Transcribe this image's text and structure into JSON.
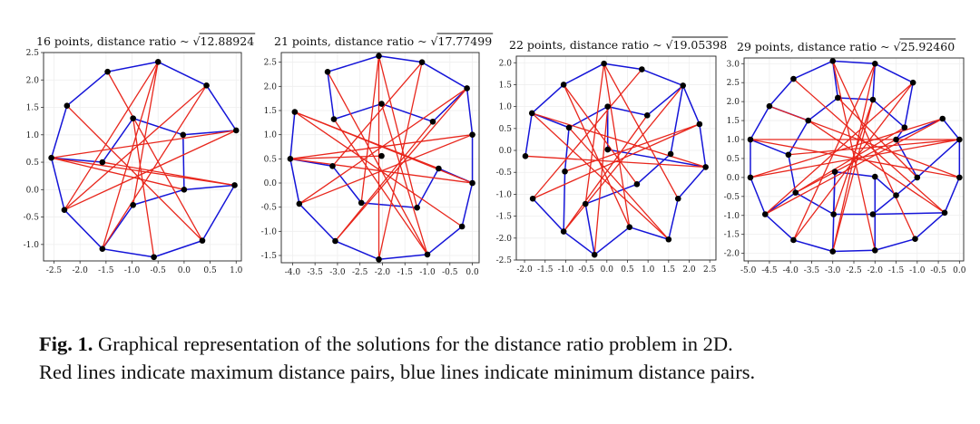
{
  "caption": {
    "label": "Fig. 1.",
    "line1": "Graphical representation of the solutions for the distance ratio problem in 2D.",
    "line2": "Red lines indicate maximum distance pairs, blue lines indicate minimum distance pairs."
  },
  "colors": {
    "max_pairs": "#e8261c",
    "min_pairs": "#1414d8",
    "points": "#000000"
  },
  "chart_data": [
    {
      "type": "scatter",
      "title": "16 points, distance ratio ~ √12.88924",
      "title_prefix": "16 points, distance ratio ~ ",
      "title_sqrt": "12.88924",
      "xlim": [
        -2.7,
        1.1
      ],
      "ylim": [
        -1.3,
        2.5
      ],
      "xticks": [
        -2.5,
        -2.0,
        -1.5,
        -1.0,
        -0.5,
        0.0,
        0.5,
        1.0
      ],
      "xtick_labels": [
        "-2.5",
        "-2.0",
        "-1.5",
        "-1.0",
        "-0.5",
        "0.0",
        "0.5",
        "1.0"
      ],
      "yticks": [
        2.5,
        2.0,
        1.5,
        1.0,
        0.5,
        0.0,
        -0.5,
        -1.0
      ],
      "ytick_labels": [
        "2.5",
        "2.0",
        "1.5",
        "1.0",
        "0.5",
        "0.0",
        "-0.5",
        "-1.0"
      ],
      "grid": true,
      "points": [
        [
          -2.55,
          0.58
        ],
        [
          -2.25,
          1.53
        ],
        [
          -1.47,
          2.15
        ],
        [
          -0.5,
          2.33
        ],
        [
          0.43,
          1.9
        ],
        [
          1.0,
          1.08
        ],
        [
          0.97,
          0.08
        ],
        [
          0.35,
          -0.93
        ],
        [
          -0.58,
          -1.23
        ],
        [
          -1.57,
          -1.08
        ],
        [
          -2.3,
          -0.37
        ],
        [
          -1.57,
          0.5
        ],
        [
          -0.98,
          1.3
        ],
        [
          -0.02,
          1.0
        ],
        [
          0.0,
          0.0
        ],
        [
          -0.98,
          -0.28
        ]
      ],
      "min_pairs": [
        [
          0,
          1
        ],
        [
          1,
          2
        ],
        [
          2,
          3
        ],
        [
          3,
          4
        ],
        [
          4,
          5
        ],
        [
          6,
          7
        ],
        [
          7,
          8
        ],
        [
          8,
          9
        ],
        [
          9,
          10
        ],
        [
          10,
          0
        ],
        [
          0,
          11
        ],
        [
          11,
          12
        ],
        [
          12,
          13
        ],
        [
          13,
          5
        ],
        [
          13,
          14
        ],
        [
          14,
          6
        ],
        [
          14,
          15
        ],
        [
          15,
          9
        ]
      ],
      "max_pairs": [
        [
          0,
          5
        ],
        [
          0,
          6
        ],
        [
          0,
          14
        ],
        [
          1,
          7
        ],
        [
          2,
          7
        ],
        [
          3,
          9
        ],
        [
          4,
          9
        ],
        [
          3,
          10
        ],
        [
          4,
          10
        ],
        [
          5,
          10
        ],
        [
          12,
          8
        ],
        [
          6,
          11
        ],
        [
          15,
          3
        ]
      ]
    },
    {
      "type": "scatter",
      "title": "21 points, distance ratio ~ √17.77499",
      "title_prefix": "21 points, distance ratio ~ ",
      "title_sqrt": "17.77499",
      "xlim": [
        -4.25,
        0.15
      ],
      "ylim": [
        -1.65,
        2.7
      ],
      "xticks": [
        -4.0,
        -3.5,
        -3.0,
        -2.5,
        -2.0,
        -1.5,
        -1.0,
        -0.5,
        0.0
      ],
      "xtick_labels": [
        "-4.0",
        "-3.5",
        "-3.0",
        "-2.5",
        "-2.0",
        "-1.5",
        "-1.0",
        "-0.5",
        "0.0"
      ],
      "yticks": [
        2.5,
        2.0,
        1.5,
        1.0,
        0.5,
        0.0,
        -0.5,
        -1.0,
        -1.5
      ],
      "ytick_labels": [
        "2.5",
        "2.0",
        "1.5",
        "1.0",
        "0.5",
        "0.0",
        "-0.5",
        "-1.0",
        "-1.5"
      ],
      "grid": true,
      "points": [
        [
          -4.05,
          0.5
        ],
        [
          -3.95,
          1.47
        ],
        [
          -3.22,
          2.3
        ],
        [
          -2.08,
          2.63
        ],
        [
          -1.12,
          2.5
        ],
        [
          -0.12,
          1.96
        ],
        [
          0.0,
          1.0
        ],
        [
          0.0,
          0.0
        ],
        [
          -0.23,
          -0.9
        ],
        [
          -1.0,
          -1.48
        ],
        [
          -2.08,
          -1.58
        ],
        [
          -3.05,
          -1.2
        ],
        [
          -3.85,
          -0.43
        ],
        [
          -3.08,
          1.32
        ],
        [
          -2.02,
          1.64
        ],
        [
          -0.88,
          1.27
        ],
        [
          -0.75,
          0.3
        ],
        [
          -1.23,
          -0.51
        ],
        [
          -2.47,
          -0.41
        ],
        [
          -3.11,
          0.35
        ],
        [
          -2.02,
          0.56
        ]
      ],
      "min_pairs": [
        [
          0,
          1
        ],
        [
          2,
          3
        ],
        [
          3,
          4
        ],
        [
          4,
          5
        ],
        [
          5,
          6
        ],
        [
          6,
          7
        ],
        [
          7,
          8
        ],
        [
          8,
          9
        ],
        [
          9,
          10
        ],
        [
          10,
          11
        ],
        [
          11,
          12
        ],
        [
          12,
          0
        ],
        [
          0,
          19
        ],
        [
          19,
          18
        ],
        [
          18,
          17
        ],
        [
          17,
          16
        ],
        [
          16,
          7
        ],
        [
          2,
          13
        ],
        [
          13,
          14
        ],
        [
          14,
          15
        ],
        [
          15,
          5
        ]
      ],
      "max_pairs": [
        [
          0,
          6
        ],
        [
          0,
          7
        ],
        [
          1,
          7
        ],
        [
          1,
          8
        ],
        [
          2,
          9
        ],
        [
          3,
          10
        ],
        [
          4,
          10
        ],
        [
          5,
          11
        ],
        [
          5,
          12
        ],
        [
          6,
          12
        ],
        [
          13,
          9
        ],
        [
          14,
          9
        ],
        [
          15,
          11
        ],
        [
          16,
          1
        ],
        [
          17,
          3
        ],
        [
          18,
          3
        ],
        [
          19,
          4
        ],
        [
          20,
          0
        ]
      ]
    },
    {
      "type": "scatter",
      "title": "22 points, distance ratio ~ √19.05398",
      "title_prefix": "22 points, distance ratio ~ ",
      "title_sqrt": "19.05398",
      "xlim": [
        -2.2,
        2.65
      ],
      "ylim": [
        -2.5,
        2.15
      ],
      "xticks": [
        -2.0,
        -1.5,
        -1.0,
        -0.5,
        0.0,
        0.5,
        1.0,
        1.5,
        2.0,
        2.5
      ],
      "xtick_labels": [
        "-2.0",
        "-1.5",
        "-1.0",
        "-0.5",
        "0.0",
        "0.5",
        "1.0",
        "1.5",
        "2.0",
        "2.5"
      ],
      "yticks": [
        2.0,
        1.5,
        1.0,
        0.5,
        0.0,
        -0.5,
        -1.0,
        -1.5,
        -2.0,
        -2.5
      ],
      "ytick_labels": [
        "2.0",
        "1.5",
        "1.0",
        "0.5",
        "0.0",
        "-0.5",
        "-1.0",
        "-1.5",
        "-2.0",
        "-2.5"
      ],
      "grid": true,
      "points": [
        [
          -1.98,
          -0.13
        ],
        [
          -1.82,
          0.85
        ],
        [
          -1.05,
          1.5
        ],
        [
          -0.07,
          1.98
        ],
        [
          0.85,
          1.85
        ],
        [
          1.85,
          1.48
        ],
        [
          2.25,
          0.6
        ],
        [
          2.4,
          -0.38
        ],
        [
          1.73,
          -1.1
        ],
        [
          1.5,
          -2.03
        ],
        [
          0.55,
          -1.75
        ],
        [
          -0.3,
          -2.38
        ],
        [
          -1.05,
          -1.85
        ],
        [
          -1.8,
          -1.1
        ],
        [
          -0.92,
          0.52
        ],
        [
          0.02,
          1.0
        ],
        [
          0.98,
          0.8
        ],
        [
          1.55,
          -0.08
        ],
        [
          0.73,
          -0.77
        ],
        [
          -0.52,
          -1.22
        ],
        [
          -1.02,
          -0.48
        ],
        [
          0.02,
          0.02
        ]
      ],
      "min_pairs": [
        [
          0,
          1
        ],
        [
          1,
          2
        ],
        [
          2,
          3
        ],
        [
          3,
          4
        ],
        [
          4,
          5
        ],
        [
          5,
          6
        ],
        [
          6,
          7
        ],
        [
          7,
          8
        ],
        [
          8,
          9
        ],
        [
          9,
          10
        ],
        [
          10,
          11
        ],
        [
          11,
          12
        ],
        [
          12,
          13
        ],
        [
          1,
          14
        ],
        [
          14,
          15
        ],
        [
          15,
          16
        ],
        [
          16,
          5
        ],
        [
          5,
          17
        ],
        [
          17,
          18
        ],
        [
          18,
          19
        ],
        [
          19,
          11
        ],
        [
          12,
          20
        ],
        [
          20,
          14
        ],
        [
          15,
          21
        ],
        [
          21,
          7
        ]
      ],
      "max_pairs": [
        [
          1,
          7
        ],
        [
          1,
          9
        ],
        [
          0,
          7
        ],
        [
          3,
          8
        ],
        [
          3,
          10
        ],
        [
          14,
          9
        ],
        [
          4,
          13
        ],
        [
          5,
          12
        ],
        [
          6,
          13
        ],
        [
          2,
          10
        ],
        [
          16,
          12
        ],
        [
          15,
          11
        ],
        [
          18,
          2
        ],
        [
          20,
          6
        ],
        [
          19,
          3
        ]
      ]
    },
    {
      "type": "scatter",
      "title": "29 points, distance ratio ~ √25.92460",
      "title_prefix": "29 points, distance ratio ~ ",
      "title_sqrt": "25.92460",
      "xlim": [
        -5.1,
        0.1
      ],
      "ylim": [
        -2.2,
        3.15
      ],
      "xticks": [
        -5.0,
        -4.5,
        -4.0,
        -3.5,
        -3.0,
        -2.5,
        -2.0,
        -1.5,
        -1.0,
        -0.5,
        0.0
      ],
      "xtick_labels": [
        "-5.0",
        "-4.5",
        "-4.0",
        "-3.5",
        "-3.0",
        "-2.5",
        "-2.0",
        "-1.5",
        "-1.0",
        "-0.5",
        "0.0"
      ],
      "yticks": [
        3.0,
        2.5,
        2.0,
        1.5,
        1.0,
        0.5,
        0.0,
        -0.5,
        -1.0,
        -1.5,
        -2.0
      ],
      "ytick_labels": [
        "3.0",
        "2.5",
        "2.0",
        "1.5",
        "1.0",
        "0.5",
        "0.0",
        "-0.5",
        "-1.0",
        "-1.5",
        "-2.0"
      ],
      "grid": true,
      "points": [
        [
          -4.95,
          1.0
        ],
        [
          -4.95,
          0.0
        ],
        [
          -4.6,
          -0.97
        ],
        [
          -3.93,
          -1.65
        ],
        [
          -3.0,
          -1.95
        ],
        [
          -2.0,
          -1.92
        ],
        [
          -1.05,
          -1.62
        ],
        [
          -0.35,
          -0.93
        ],
        [
          0.0,
          0.0
        ],
        [
          0.0,
          1.0
        ],
        [
          -0.4,
          1.55
        ],
        [
          -1.1,
          2.5
        ],
        [
          -2.0,
          3.0
        ],
        [
          -3.0,
          3.07
        ],
        [
          -3.93,
          2.6
        ],
        [
          -4.5,
          1.88
        ],
        [
          -3.58,
          1.5
        ],
        [
          -2.88,
          2.1
        ],
        [
          -2.05,
          2.05
        ],
        [
          -1.3,
          1.32
        ],
        [
          -1.0,
          0.0
        ],
        [
          -1.5,
          -0.47
        ],
        [
          -2.05,
          -0.97
        ],
        [
          -2.98,
          -0.97
        ],
        [
          -3.88,
          -0.4
        ],
        [
          -4.05,
          0.6
        ],
        [
          -2.95,
          0.15
        ],
        [
          -2.0,
          0.02
        ],
        [
          -1.5,
          1.0
        ]
      ],
      "min_pairs": [
        [
          0,
          1
        ],
        [
          1,
          2
        ],
        [
          2,
          3
        ],
        [
          3,
          4
        ],
        [
          4,
          5
        ],
        [
          5,
          6
        ],
        [
          6,
          7
        ],
        [
          7,
          8
        ],
        [
          8,
          9
        ],
        [
          9,
          10
        ],
        [
          11,
          12
        ],
        [
          12,
          13
        ],
        [
          13,
          14
        ],
        [
          14,
          15
        ],
        [
          15,
          0
        ],
        [
          0,
          25
        ],
        [
          25,
          16
        ],
        [
          16,
          15
        ],
        [
          16,
          17
        ],
        [
          17,
          13
        ],
        [
          17,
          18
        ],
        [
          18,
          12
        ],
        [
          18,
          19
        ],
        [
          19,
          11
        ],
        [
          19,
          28
        ],
        [
          28,
          10
        ],
        [
          28,
          20
        ],
        [
          20,
          9
        ],
        [
          20,
          21
        ],
        [
          21,
          22
        ],
        [
          22,
          7
        ],
        [
          22,
          23
        ],
        [
          23,
          24
        ],
        [
          24,
          2
        ],
        [
          24,
          25
        ],
        [
          23,
          26
        ],
        [
          26,
          27
        ],
        [
          27,
          21
        ],
        [
          27,
          5
        ],
        [
          26,
          4
        ]
      ],
      "max_pairs": [
        [
          0,
          8
        ],
        [
          0,
          9
        ],
        [
          15,
          8
        ],
        [
          14,
          7
        ],
        [
          13,
          6
        ],
        [
          13,
          5
        ],
        [
          12,
          4
        ],
        [
          11,
          3
        ],
        [
          11,
          2
        ],
        [
          10,
          1
        ],
        [
          9,
          1
        ],
        [
          16,
          7
        ],
        [
          17,
          20
        ],
        [
          18,
          23
        ],
        [
          19,
          24
        ],
        [
          2,
          10
        ],
        [
          3,
          12
        ],
        [
          4,
          18
        ],
        [
          25,
          9
        ],
        [
          28,
          24
        ]
      ]
    }
  ]
}
